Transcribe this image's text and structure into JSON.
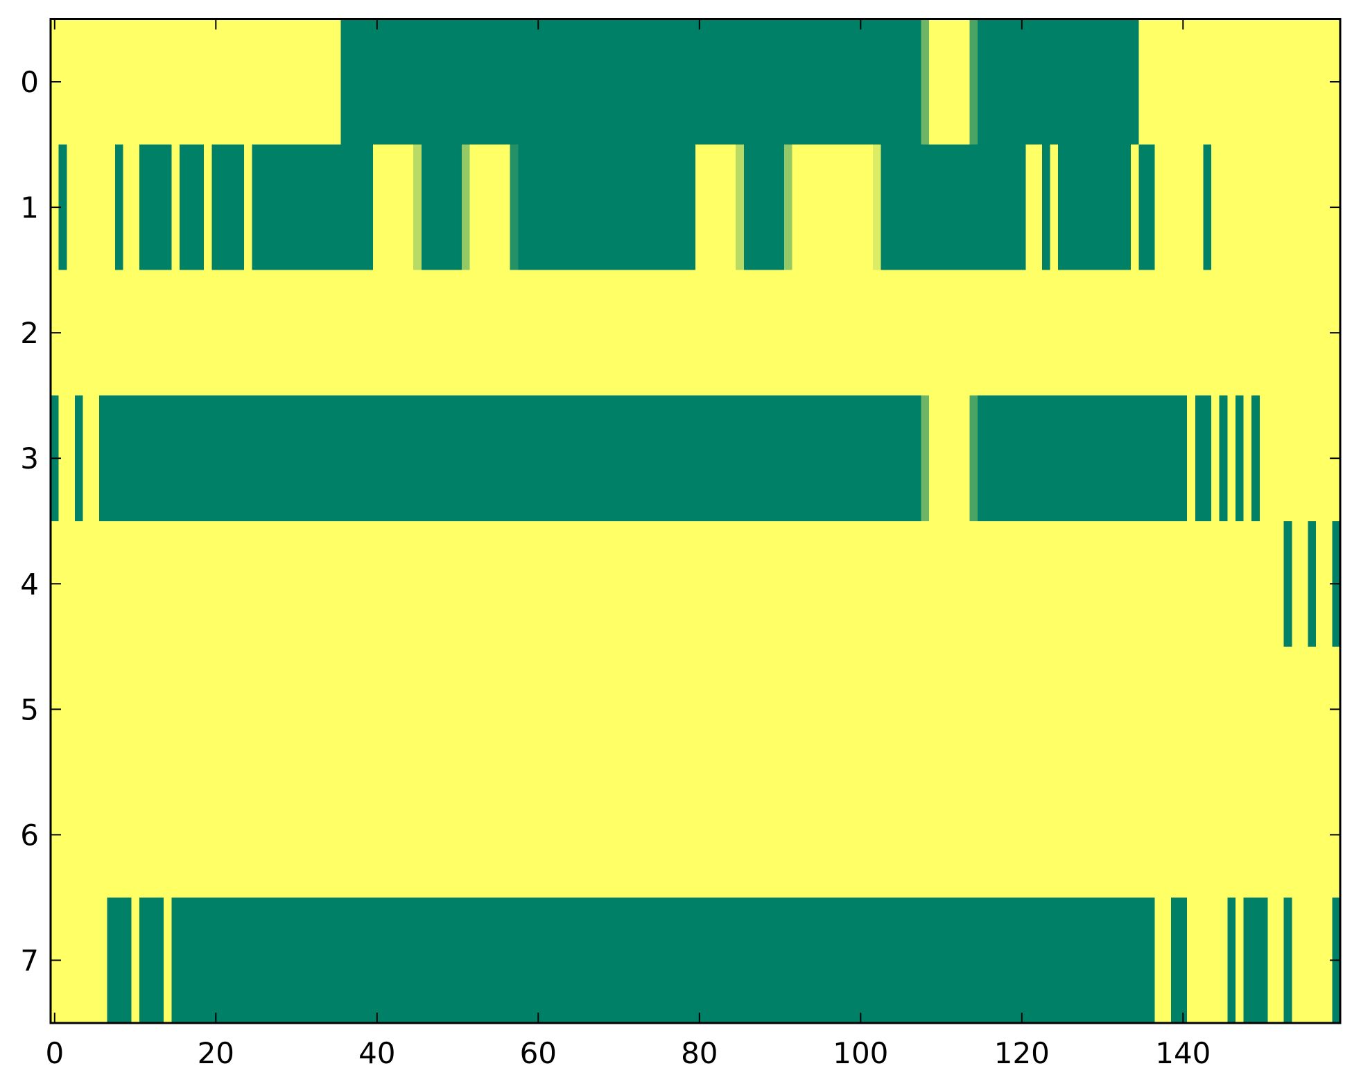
{
  "chart_data": {
    "type": "heatmap",
    "title": "",
    "xlabel": "",
    "ylabel": "",
    "colormap": "summer",
    "color_low": "#008066",
    "color_high": "#ffff66",
    "value_range": [
      0,
      1
    ],
    "grid": false,
    "xlim": [
      -0.5,
      159.5
    ],
    "ylim": [
      7.5,
      -0.5
    ],
    "x_ticks": [
      0,
      20,
      40,
      60,
      80,
      100,
      120,
      140
    ],
    "x_tick_labels": [
      "0",
      "20",
      "40",
      "60",
      "80",
      "100",
      "120",
      "140"
    ],
    "y_ticks": [
      0,
      1,
      2,
      3,
      4,
      5,
      6,
      7
    ],
    "y_tick_labels": [
      "0",
      "1",
      "2",
      "3",
      "4",
      "5",
      "6",
      "7"
    ],
    "rows": [
      [
        1,
        1,
        1,
        1,
        1,
        1,
        1,
        1,
        1,
        1,
        1,
        1,
        1,
        1,
        1,
        1,
        1,
        1,
        1,
        1,
        1,
        1,
        1,
        1,
        1,
        1,
        1,
        1,
        1,
        1,
        1,
        1,
        1,
        1,
        1,
        1,
        0,
        0,
        0,
        0,
        0,
        0,
        0,
        0,
        0,
        0,
        0,
        0,
        0,
        0,
        0,
        0,
        0,
        0,
        0,
        0,
        0,
        0,
        0,
        0,
        0,
        0,
        0,
        0,
        0,
        0,
        0,
        0,
        0,
        0,
        0,
        0,
        0,
        0,
        0,
        0,
        0,
        0,
        0,
        0,
        0,
        0,
        0,
        0,
        0,
        0,
        0,
        0,
        0,
        0,
        0,
        0,
        0,
        0,
        0,
        0,
        0,
        0,
        0,
        0,
        0,
        0,
        0,
        0,
        0,
        0,
        0,
        0,
        0.43,
        1,
        1,
        1,
        1,
        1,
        0.29,
        0,
        0,
        0,
        0,
        0,
        0,
        0,
        0,
        0,
        0,
        0,
        0,
        0,
        0,
        0,
        0,
        0,
        0,
        0,
        0,
        1,
        1,
        1,
        1,
        1,
        1,
        1,
        1,
        1,
        1,
        1,
        1,
        1,
        1,
        1,
        1,
        1,
        1,
        1,
        1,
        1,
        1,
        1,
        1,
        1
      ],
      [
        1,
        0,
        1,
        1,
        1,
        1,
        1,
        1,
        0,
        1,
        1,
        0,
        0,
        0,
        0,
        1,
        0,
        0,
        0,
        1,
        0,
        0,
        0,
        0,
        1,
        0,
        0,
        0,
        0,
        0,
        0,
        0,
        0,
        0,
        0,
        0,
        0,
        0,
        0,
        0,
        1,
        1,
        1,
        1,
        1,
        0.72,
        0,
        0,
        0,
        0,
        0,
        0.58,
        1,
        1,
        1,
        1,
        1,
        0.14,
        0,
        0,
        0,
        0,
        0,
        0,
        0,
        0,
        0,
        0,
        0,
        0,
        0,
        0,
        0,
        0,
        0,
        0,
        0,
        0,
        0,
        0,
        1,
        1,
        1,
        1,
        1,
        0.72,
        0,
        0,
        0,
        0,
        0,
        0.58,
        1,
        1,
        1,
        1,
        1,
        1,
        1,
        1,
        1,
        1,
        0.86,
        0,
        0,
        0,
        0,
        0,
        0,
        0,
        0,
        0,
        0,
        0,
        0,
        0,
        0,
        0,
        0,
        0,
        0,
        1,
        1,
        0,
        1,
        0,
        0,
        0,
        0,
        0,
        0,
        0,
        0,
        0,
        1,
        0,
        0,
        1,
        1,
        1,
        1,
        1,
        1,
        0,
        1,
        1,
        1,
        1,
        1,
        1,
        1,
        1,
        1,
        1,
        1,
        1,
        1,
        1,
        1,
        1
      ],
      [
        1,
        1,
        1,
        1,
        1,
        1,
        1,
        1,
        1,
        1,
        1,
        1,
        1,
        1,
        1,
        1,
        1,
        1,
        1,
        1,
        1,
        1,
        1,
        1,
        1,
        1,
        1,
        1,
        1,
        1,
        1,
        1,
        1,
        1,
        1,
        1,
        1,
        1,
        1,
        1,
        1,
        1,
        1,
        1,
        1,
        1,
        1,
        1,
        1,
        1,
        1,
        1,
        1,
        1,
        1,
        1,
        1,
        1,
        1,
        1,
        1,
        1,
        1,
        1,
        1,
        1,
        1,
        1,
        1,
        1,
        1,
        1,
        1,
        1,
        1,
        1,
        1,
        1,
        1,
        1,
        1,
        1,
        1,
        1,
        1,
        1,
        1,
        1,
        1,
        1,
        1,
        1,
        1,
        1,
        1,
        1,
        1,
        1,
        1,
        1,
        1,
        1,
        1,
        1,
        1,
        1,
        1,
        1,
        1,
        1,
        1,
        1,
        1,
        1,
        1,
        1,
        1,
        1,
        1,
        1,
        1,
        1,
        1,
        1,
        1,
        1,
        1,
        1,
        1,
        1,
        1,
        1,
        1,
        1,
        1,
        1,
        1,
        1,
        1,
        1,
        1,
        1,
        1,
        1,
        1,
        1,
        1,
        1,
        1,
        1,
        1,
        1,
        1,
        1,
        1,
        1,
        1,
        1,
        1,
        1
      ],
      [
        0,
        1,
        1,
        0,
        1,
        1,
        0,
        0,
        0,
        0,
        0,
        0,
        0,
        0,
        0,
        0,
        0,
        0,
        0,
        0,
        0,
        0,
        0,
        0,
        0,
        0,
        0,
        0,
        0,
        0,
        0,
        0,
        0,
        0,
        0,
        0,
        0,
        0,
        0,
        0,
        0,
        0,
        0,
        0,
        0,
        0,
        0,
        0,
        0,
        0,
        0,
        0,
        0,
        0,
        0,
        0,
        0,
        0,
        0,
        0,
        0,
        0,
        0,
        0,
        0,
        0,
        0,
        0,
        0,
        0,
        0,
        0,
        0,
        0,
        0,
        0,
        0,
        0,
        0,
        0,
        0,
        0,
        0,
        0,
        0,
        0,
        0,
        0,
        0,
        0,
        0,
        0,
        0,
        0,
        0,
        0,
        0,
        0,
        0,
        0,
        0,
        0,
        0,
        0,
        0,
        0,
        0,
        0,
        0.43,
        1,
        1,
        1,
        1,
        1,
        0.29,
        0,
        0,
        0,
        0,
        0,
        0,
        0,
        0,
        0,
        0,
        0,
        0,
        0,
        0,
        0,
        0,
        0,
        0,
        0,
        0,
        0,
        0,
        0,
        0,
        0,
        0,
        1,
        0,
        0,
        1,
        0,
        1,
        0,
        1,
        0,
        1,
        1,
        1,
        1,
        1,
        1,
        1,
        1,
        1,
        1
      ],
      [
        1,
        1,
        1,
        1,
        1,
        1,
        1,
        1,
        1,
        1,
        1,
        1,
        1,
        1,
        1,
        1,
        1,
        1,
        1,
        1,
        1,
        1,
        1,
        1,
        1,
        1,
        1,
        1,
        1,
        1,
        1,
        1,
        1,
        1,
        1,
        1,
        1,
        1,
        1,
        1,
        1,
        1,
        1,
        1,
        1,
        1,
        1,
        1,
        1,
        1,
        1,
        1,
        1,
        1,
        1,
        1,
        1,
        1,
        1,
        1,
        1,
        1,
        1,
        1,
        1,
        1,
        1,
        1,
        1,
        1,
        1,
        1,
        1,
        1,
        1,
        1,
        1,
        1,
        1,
        1,
        1,
        1,
        1,
        1,
        1,
        1,
        1,
        1,
        1,
        1,
        1,
        1,
        1,
        1,
        1,
        1,
        1,
        1,
        1,
        1,
        1,
        1,
        1,
        1,
        1,
        1,
        1,
        1,
        1,
        1,
        1,
        1,
        1,
        1,
        1,
        1,
        1,
        1,
        1,
        1,
        1,
        1,
        1,
        1,
        1,
        1,
        1,
        1,
        1,
        1,
        1,
        1,
        1,
        1,
        1,
        1,
        1,
        1,
        1,
        1,
        1,
        1,
        1,
        1,
        1,
        1,
        1,
        1,
        1,
        1,
        1,
        1,
        1,
        0,
        1,
        1,
        0,
        1,
        1,
        0
      ],
      [
        1,
        1,
        1,
        1,
        1,
        1,
        1,
        1,
        1,
        1,
        1,
        1,
        1,
        1,
        1,
        1,
        1,
        1,
        1,
        1,
        1,
        1,
        1,
        1,
        1,
        1,
        1,
        1,
        1,
        1,
        1,
        1,
        1,
        1,
        1,
        1,
        1,
        1,
        1,
        1,
        1,
        1,
        1,
        1,
        1,
        1,
        1,
        1,
        1,
        1,
        1,
        1,
        1,
        1,
        1,
        1,
        1,
        1,
        1,
        1,
        1,
        1,
        1,
        1,
        1,
        1,
        1,
        1,
        1,
        1,
        1,
        1,
        1,
        1,
        1,
        1,
        1,
        1,
        1,
        1,
        1,
        1,
        1,
        1,
        1,
        1,
        1,
        1,
        1,
        1,
        1,
        1,
        1,
        1,
        1,
        1,
        1,
        1,
        1,
        1,
        1,
        1,
        1,
        1,
        1,
        1,
        1,
        1,
        1,
        1,
        1,
        1,
        1,
        1,
        1,
        1,
        1,
        1,
        1,
        1,
        1,
        1,
        1,
        1,
        1,
        1,
        1,
        1,
        1,
        1,
        1,
        1,
        1,
        1,
        1,
        1,
        1,
        1,
        1,
        1,
        1,
        1,
        1,
        1,
        1,
        1,
        1,
        1,
        1,
        1,
        1,
        1,
        1,
        1,
        1,
        1,
        1,
        1,
        1,
        1
      ],
      [
        1,
        1,
        1,
        1,
        1,
        1,
        1,
        1,
        1,
        1,
        1,
        1,
        1,
        1,
        1,
        1,
        1,
        1,
        1,
        1,
        1,
        1,
        1,
        1,
        1,
        1,
        1,
        1,
        1,
        1,
        1,
        1,
        1,
        1,
        1,
        1,
        1,
        1,
        1,
        1,
        1,
        1,
        1,
        1,
        1,
        1,
        1,
        1,
        1,
        1,
        1,
        1,
        1,
        1,
        1,
        1,
        1,
        1,
        1,
        1,
        1,
        1,
        1,
        1,
        1,
        1,
        1,
        1,
        1,
        1,
        1,
        1,
        1,
        1,
        1,
        1,
        1,
        1,
        1,
        1,
        1,
        1,
        1,
        1,
        1,
        1,
        1,
        1,
        1,
        1,
        1,
        1,
        1,
        1,
        1,
        1,
        1,
        1,
        1,
        1,
        1,
        1,
        1,
        1,
        1,
        1,
        1,
        1,
        1,
        1,
        1,
        1,
        1,
        1,
        1,
        1,
        1,
        1,
        1,
        1,
        1,
        1,
        1,
        1,
        1,
        1,
        1,
        1,
        1,
        1,
        1,
        1,
        1,
        1,
        1,
        1,
        1,
        1,
        1,
        1,
        1,
        1,
        1,
        1,
        1,
        1,
        1,
        1,
        1,
        1,
        1,
        1,
        1,
        1,
        1,
        1,
        1,
        1,
        1,
        1
      ],
      [
        1,
        1,
        1,
        1,
        1,
        1,
        1,
        0,
        0,
        0,
        1,
        0,
        0,
        0,
        1,
        0,
        0,
        0,
        0,
        0,
        0,
        0,
        0,
        0,
        0,
        0,
        0,
        0,
        0,
        0,
        0,
        0,
        0,
        0,
        0,
        0,
        0,
        0,
        0,
        0,
        0,
        0,
        0,
        0,
        0,
        0,
        0,
        0,
        0,
        0,
        0,
        0,
        0,
        0,
        0,
        0,
        0,
        0,
        0,
        0,
        0,
        0,
        0,
        0,
        0,
        0,
        0,
        0,
        0,
        0,
        0,
        0,
        0,
        0,
        0,
        0,
        0,
        0,
        0,
        0,
        0,
        0,
        0,
        0,
        0,
        0,
        0,
        0,
        0,
        0,
        0,
        0,
        0,
        0,
        0,
        0,
        0,
        0,
        0,
        0,
        0,
        0,
        0,
        0,
        0,
        0,
        0,
        0,
        0,
        0,
        0,
        0,
        0,
        0,
        0,
        0,
        0,
        0,
        0,
        0,
        0,
        0,
        0,
        0,
        0,
        0,
        0,
        0,
        0,
        0,
        0,
        0,
        0,
        0,
        0,
        0,
        0,
        1,
        1,
        0,
        0,
        1,
        1,
        1,
        1,
        1,
        0,
        1,
        0,
        0,
        0,
        1,
        1,
        0,
        1,
        1,
        1,
        1,
        1,
        0
      ]
    ]
  }
}
